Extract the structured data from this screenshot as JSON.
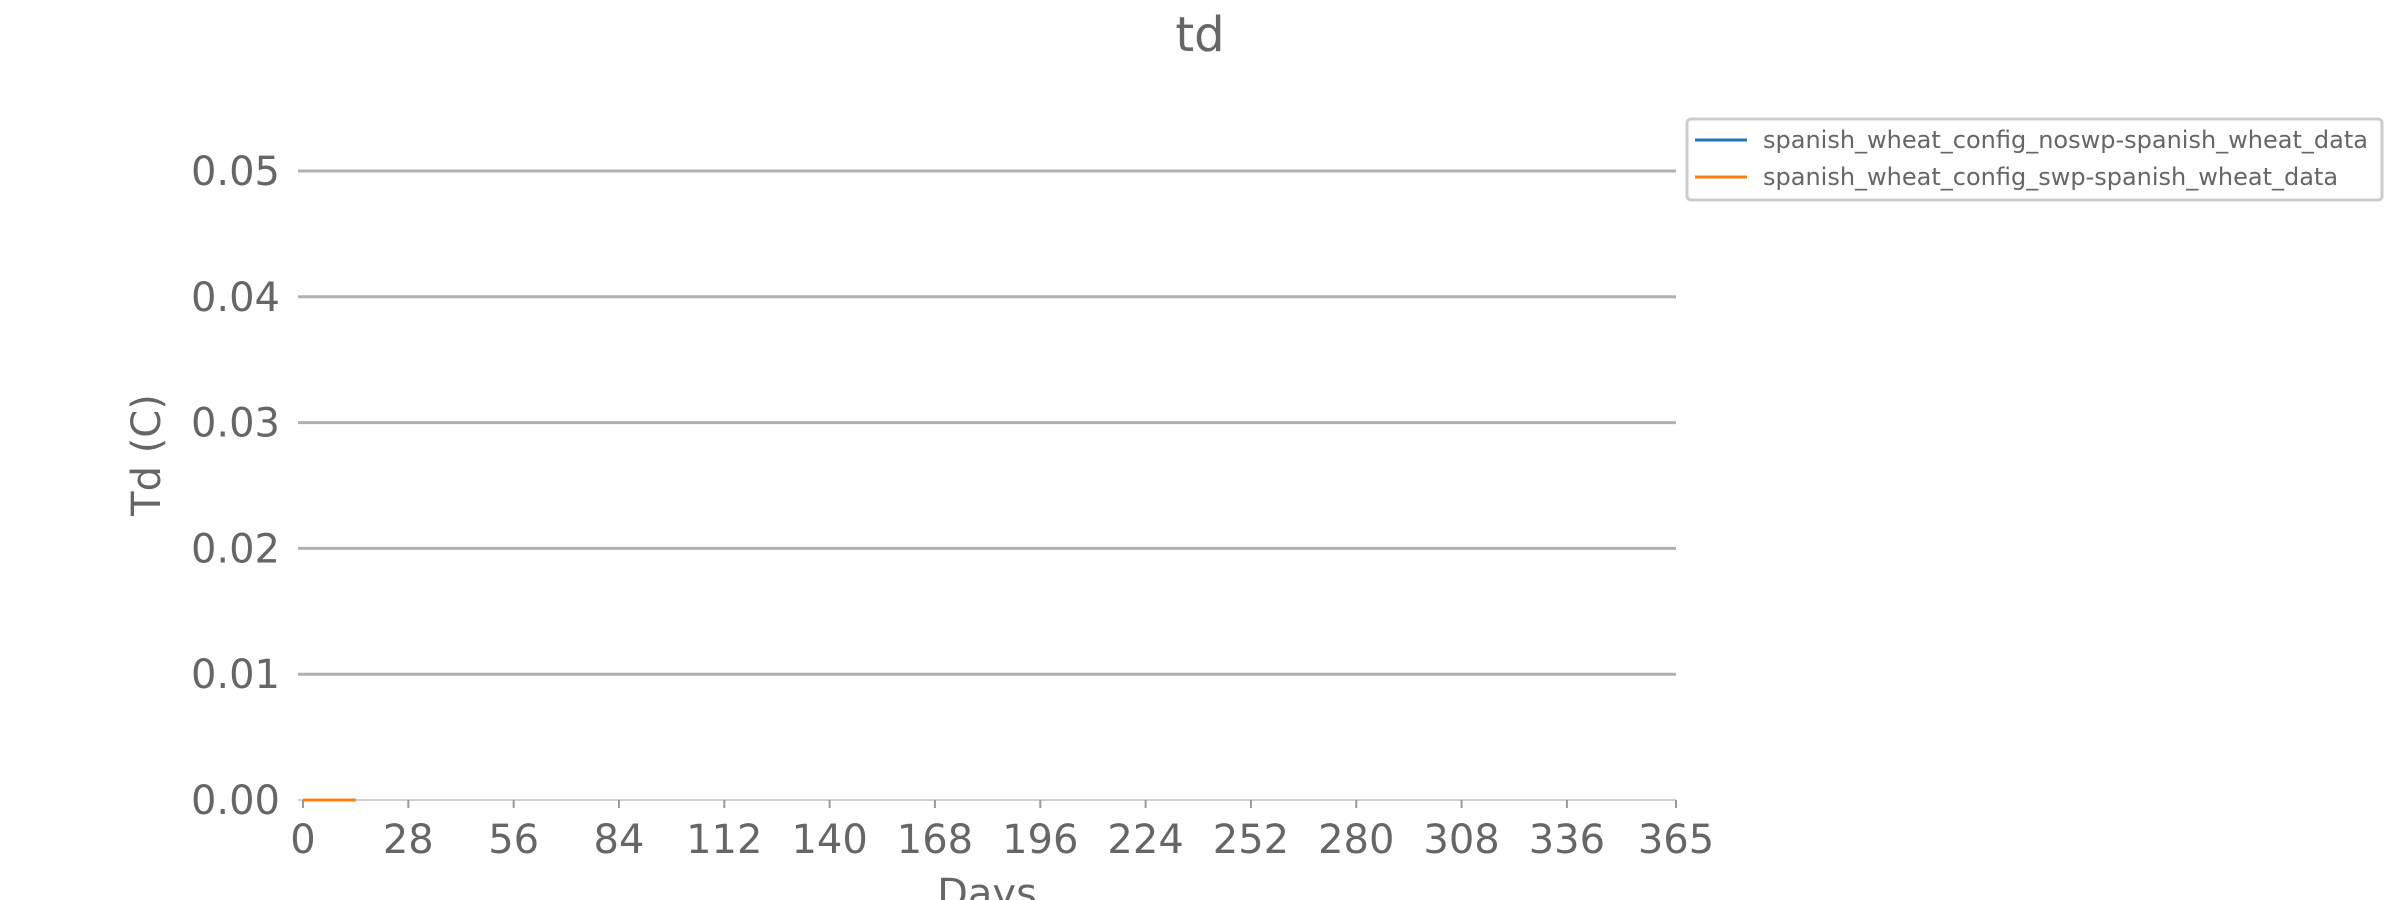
{
  "chart_data": {
    "type": "line",
    "title": "td",
    "xlabel": "Days",
    "ylabel": "Td (C)",
    "xlim": [
      0,
      365
    ],
    "ylim": [
      0,
      0.05
    ],
    "x_ticks": [
      0,
      28,
      56,
      84,
      112,
      140,
      168,
      196,
      224,
      252,
      280,
      308,
      336,
      365
    ],
    "y_ticks": [
      0.0,
      0.01,
      0.02,
      0.03,
      0.04,
      0.05
    ],
    "y_tick_labels": [
      "0.00",
      "0.01",
      "0.02",
      "0.03",
      "0.04",
      "0.05"
    ],
    "grid": "horizontal",
    "legend_position": "top-right outside",
    "colors": {
      "text": "#666666",
      "grid": "#b0b0b0",
      "axis": "#d0d0d0"
    },
    "series": [
      {
        "name": "spanish_wheat_config_noswp-spanish_wheat_data",
        "color": "#1f77b4",
        "x": [
          0,
          14
        ],
        "values": [
          0,
          0
        ]
      },
      {
        "name": "spanish_wheat_config_swp-spanish_wheat_data",
        "color": "#ff7f0e",
        "x": [
          0,
          14
        ],
        "values": [
          0,
          0
        ]
      }
    ]
  }
}
